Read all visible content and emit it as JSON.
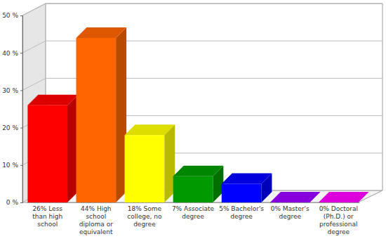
{
  "chart_data": {
    "type": "bar",
    "categories": [
      "26% Less than high school",
      "44% High school diploma or equivalent",
      "18% Some college, no degree",
      "7% Associate degree",
      "5% Bachelor's degree",
      "0% Master's degree",
      "0% Doctoral (Ph.D.) or professional degree"
    ],
    "values": [
      26,
      44,
      18,
      7,
      5,
      0,
      0
    ],
    "colors": [
      "#ff0000",
      "#ff6600",
      "#ffff00",
      "#009900",
      "#0000ff",
      "#9900ff",
      "#ff00ff"
    ],
    "ylim": [
      0,
      50
    ],
    "yticks": [
      {
        "value": 0,
        "label": "0 %"
      },
      {
        "value": 10,
        "label": "10 %"
      },
      {
        "value": 20,
        "label": "20 %"
      },
      {
        "value": 30,
        "label": "30 %"
      },
      {
        "value": 40,
        "label": "40 %"
      },
      {
        "value": 50,
        "label": "50 %"
      }
    ],
    "grid": true
  }
}
